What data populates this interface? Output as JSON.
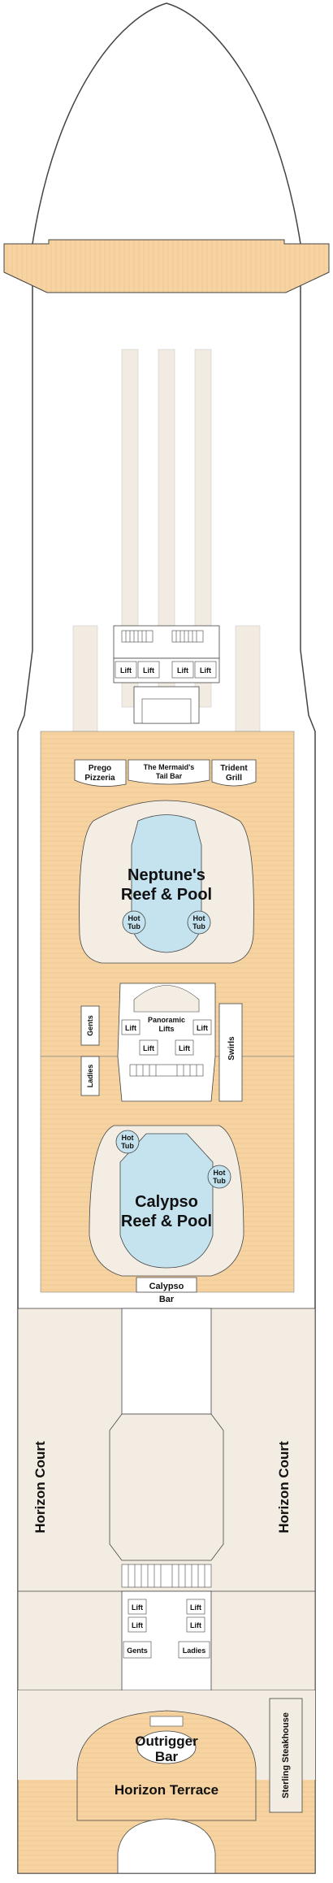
{
  "venues": {
    "prego": [
      "Prego",
      "Pizzeria"
    ],
    "mermaid": [
      "The Mermaid's",
      "Tail Bar"
    ],
    "trident": [
      "Trident",
      "Grill"
    ],
    "neptune": [
      "Neptune's",
      "Reef & Pool"
    ],
    "hot_tub": [
      "Hot",
      "Tub"
    ],
    "panoramic": [
      "Panoramic",
      "Lifts"
    ],
    "swirls": "Swirls",
    "gents": "Gents",
    "ladies": "Ladies",
    "calypso_pool": [
      "Calypso",
      "Reef & Pool"
    ],
    "calypso_bar": [
      "Calypso",
      "Bar"
    ],
    "horizon_court": "Horizon Court",
    "outrigger": [
      "Outrigger",
      "Bar"
    ],
    "horizon_terrace": "Horizon Terrace",
    "sterling": "Sterling Steakhouse"
  },
  "lift": "Lift",
  "colors": {
    "deck_wood": "#f6d3a1",
    "deck_lines": "#e9bf86",
    "interior": "#f3ece2",
    "pool_water": "#c4e3ef",
    "hull": "#ffffff",
    "outline": "#333333"
  }
}
